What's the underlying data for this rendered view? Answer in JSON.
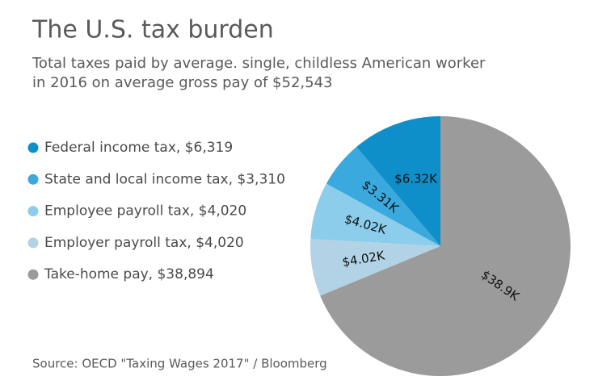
{
  "chart_data": {
    "type": "pie",
    "title": "The U.S. tax burden",
    "subtitle": [
      "Total taxes paid by average. single, childless American worker",
      "in 2016 on average gross pay of $52,543"
    ],
    "categories": [
      "Federal income tax, $6,319",
      "State and local income tax, $3,310",
      "Employee payroll tax, $4,020",
      "Employer payroll tax, $4,020",
      "Take-home pay, $38,894"
    ],
    "values": [
      6319,
      3310,
      4020,
      4020,
      38894
    ],
    "value_labels": [
      "$6.32K",
      "$3.31K",
      "$4.02K",
      "$4.02K",
      "$38.9K"
    ],
    "colors": [
      "#0e8fc9",
      "#3aa9de",
      "#8ccdec",
      "#b2d3e5",
      "#9b9b9b"
    ],
    "source": "Source: OECD \"Taxing Wages 2017\" / Bloomberg"
  }
}
